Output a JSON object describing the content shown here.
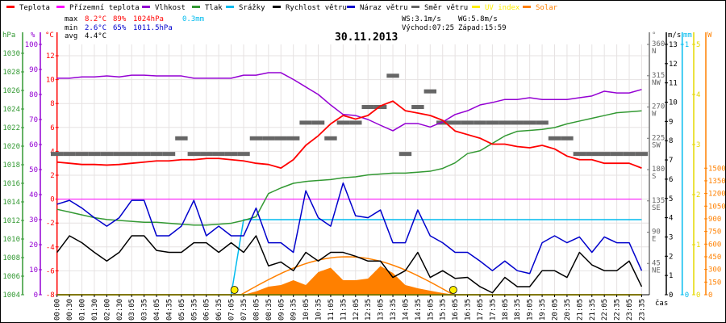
{
  "legend": [
    {
      "label": "Teplota",
      "color": "#ff0000"
    },
    {
      "label": "Přízemní teplota",
      "color": "#ff00ff"
    },
    {
      "label": "Vlhkost",
      "color": "#9400d3"
    },
    {
      "label": "Tlak",
      "color": "#339933"
    },
    {
      "label": "Srážky",
      "color": "#00bbee"
    },
    {
      "label": "Rychlost větru",
      "color": "#000000"
    },
    {
      "label": "Náraz větru",
      "color": "#0000cc"
    },
    {
      "label": "Směr větru",
      "color": "#666666"
    },
    {
      "label": "UV index",
      "color": "#ffee00"
    },
    {
      "label": "Solar",
      "color": "#ff8000"
    }
  ],
  "stats": {
    "max_label": "max",
    "min_label": "min",
    "avg_label": "avg",
    "max_temp": "8.2°C",
    "max_hum": "89%",
    "max_press": "1024hPa",
    "max_rain": "0.3mm",
    "min_temp": "2.6°C",
    "min_hum": "65%",
    "min_press": "1011.5hPa",
    "avg_temp": "4.4°C",
    "ws": "WS:3.1m/s",
    "wg": "WG:5.8m/s",
    "sunrise": "Východ:07:25",
    "sunset": "Západ:15:59"
  },
  "chart_data": {
    "type": "line",
    "title": "30.11.2013",
    "xlabel": "čas",
    "x": [
      "00:00",
      "00:30",
      "01:00",
      "01:30",
      "02:00",
      "02:30",
      "03:05",
      "03:35",
      "04:05",
      "04:35",
      "05:05",
      "05:35",
      "06:05",
      "06:35",
      "07:05",
      "07:35",
      "08:05",
      "08:35",
      "09:05",
      "09:35",
      "10:05",
      "10:35",
      "11:05",
      "11:35",
      "12:05",
      "12:35",
      "13:05",
      "13:35",
      "14:05",
      "14:35",
      "15:05",
      "15:35",
      "16:05",
      "16:35",
      "17:05",
      "17:35",
      "18:05",
      "18:35",
      "19:05",
      "19:35",
      "20:05",
      "20:35",
      "21:05",
      "21:35",
      "22:05",
      "22:35",
      "23:05",
      "23:35"
    ],
    "axes": {
      "pressure": {
        "unit": "hPa",
        "range": [
          1004,
          1030
        ],
        "ticks": [
          1004,
          1006,
          1008,
          1010,
          1012,
          1014,
          1016,
          1018,
          1020,
          1022,
          1024,
          1026,
          1028,
          1030
        ]
      },
      "humidity": {
        "unit": "%",
        "range": [
          0,
          100
        ],
        "ticks": [
          0,
          10,
          20,
          30,
          40,
          50,
          60,
          70,
          80,
          90,
          100
        ]
      },
      "temperature": {
        "unit": "°C",
        "range": [
          -8,
          13
        ],
        "ticks": [
          -8,
          -6,
          -4,
          -2,
          0,
          2,
          4,
          6,
          8,
          10,
          12
        ]
      },
      "direction": {
        "unit": "°",
        "range": [
          0,
          360
        ],
        "ticks": [
          45,
          90,
          135,
          180,
          225,
          270,
          315,
          360
        ],
        "names": [
          "NE",
          "E",
          "SE",
          "S",
          "SW",
          "W",
          "NW",
          "N"
        ]
      },
      "wind": {
        "unit": "m/s",
        "range": [
          0,
          13
        ],
        "ticks": [
          0,
          1,
          2,
          3,
          4,
          5,
          6,
          7,
          8,
          9,
          10,
          11,
          12,
          13
        ]
      },
      "rain": {
        "unit": "mm",
        "range": [
          0,
          1
        ],
        "ticks": [
          0,
          1
        ]
      },
      "uv": {
        "unit": "",
        "range": [
          0,
          5
        ],
        "ticks": [
          0,
          1,
          2,
          3,
          4,
          5
        ]
      },
      "solar": {
        "unit": "W",
        "range": [
          0,
          2970
        ],
        "ticks": [
          0,
          150,
          300,
          450,
          600,
          750,
          900,
          1050,
          1200,
          1350,
          1500
        ]
      }
    },
    "series": [
      {
        "name": "Teplota",
        "axis": "temperature",
        "color": "#ff0000",
        "values": [
          3.1,
          3.0,
          2.9,
          2.9,
          2.85,
          2.9,
          3.0,
          3.1,
          3.2,
          3.2,
          3.3,
          3.3,
          3.4,
          3.4,
          3.3,
          3.2,
          3.0,
          2.9,
          2.6,
          3.3,
          4.5,
          5.3,
          6.3,
          7.0,
          6.7,
          7.0,
          7.8,
          8.2,
          7.4,
          7.2,
          7.0,
          6.6,
          5.7,
          5.4,
          5.1,
          4.6,
          4.6,
          4.4,
          4.3,
          4.5,
          4.2,
          3.6,
          3.3,
          3.3,
          3.0,
          3.0,
          3.0,
          2.6
        ]
      },
      {
        "name": "Přízemní teplota",
        "axis": "temperature",
        "color": "#ff00ff",
        "values": [
          0,
          0,
          0,
          0,
          0,
          0,
          0,
          0,
          0,
          0,
          0,
          0,
          0,
          0,
          0,
          0,
          0,
          0,
          0,
          0,
          0,
          0,
          0,
          0,
          0,
          0,
          0,
          0,
          0,
          0,
          0,
          0,
          0,
          0,
          0,
          0,
          0,
          0,
          0,
          0,
          0,
          0,
          0,
          0,
          0,
          0,
          0,
          0
        ]
      },
      {
        "name": "Vlhkost",
        "axis": "humidity",
        "color": "#9400d3",
        "values": [
          86.5,
          86.5,
          87,
          87,
          87.4,
          87,
          87.7,
          87.7,
          87.4,
          87.4,
          87.4,
          86.5,
          86.5,
          86.5,
          86.5,
          87.7,
          87.7,
          88.7,
          88.7,
          86,
          83,
          80,
          75.8,
          72,
          71.6,
          70,
          67.7,
          65.5,
          68.4,
          68.4,
          67,
          69,
          72,
          73.5,
          75.8,
          76.8,
          78,
          78,
          78.7,
          78,
          78,
          78,
          78.7,
          79.4,
          81.3,
          80.6,
          80.6,
          82
        ]
      },
      {
        "name": "Tlak",
        "axis": "pressure",
        "color": "#339933",
        "values": [
          1013.2,
          1012.9,
          1012.6,
          1012.3,
          1012.1,
          1012.0,
          1011.9,
          1011.8,
          1011.8,
          1011.7,
          1011.6,
          1011.5,
          1011.5,
          1011.6,
          1011.7,
          1012.0,
          1012.4,
          1014.9,
          1015.5,
          1016.0,
          1016.2,
          1016.3,
          1016.4,
          1016.6,
          1016.7,
          1016.9,
          1017.0,
          1017.1,
          1017.1,
          1017.2,
          1017.3,
          1017.6,
          1018.2,
          1019.2,
          1019.5,
          1020.3,
          1021.1,
          1021.6,
          1021.7,
          1021.8,
          1022.0,
          1022.4,
          1022.7,
          1023.0,
          1023.3,
          1023.6,
          1023.7,
          1023.8
        ]
      },
      {
        "name": "Srážky",
        "axis": "rain",
        "color": "#00bbee",
        "values": [
          0,
          0,
          0,
          0,
          0,
          0,
          0,
          0,
          0,
          0,
          0,
          0,
          0,
          0,
          0,
          0.3,
          0.3,
          0.3,
          0.3,
          0.3,
          0.3,
          0.3,
          0.3,
          0.3,
          0.3,
          0.3,
          0.3,
          0.3,
          0.3,
          0.3,
          0.3,
          0.3,
          0.3,
          0.3,
          0.3,
          0.3,
          0.3,
          0.3,
          0.3,
          0.3,
          0.3,
          0.3,
          0.3,
          0.3,
          0.3,
          0.3,
          0.3,
          0.3
        ]
      },
      {
        "name": "Rychlost větru",
        "axis": "wind",
        "color": "#000000",
        "values": [
          2.2,
          3.06,
          2.7,
          2.2,
          1.75,
          2.2,
          3.06,
          3.06,
          2.3,
          2.2,
          2.2,
          2.7,
          2.7,
          2.2,
          2.7,
          2.2,
          3.06,
          1.5,
          1.7,
          1.25,
          2.2,
          1.75,
          2.2,
          2.2,
          2.0,
          1.75,
          1.75,
          0.9,
          1.25,
          2.2,
          0.9,
          1.25,
          0.85,
          0.9,
          0.42,
          0.1,
          0.9,
          0.42,
          0.42,
          1.25,
          1.25,
          0.9,
          2.2,
          1.55,
          1.25,
          1.25,
          1.75,
          0.42
        ]
      },
      {
        "name": "Náraz větru",
        "axis": "wind",
        "color": "#0000cc",
        "values": [
          4.7,
          4.9,
          4.5,
          4.0,
          3.56,
          4.0,
          4.9,
          4.9,
          3.06,
          3.06,
          3.56,
          4.9,
          3.06,
          3.56,
          3.06,
          3.06,
          4.5,
          2.7,
          2.7,
          2.2,
          5.4,
          4.0,
          3.56,
          5.8,
          4.1,
          4.0,
          4.4,
          2.7,
          2.7,
          4.4,
          3.06,
          2.7,
          2.2,
          2.2,
          1.75,
          1.25,
          1.75,
          1.25,
          1.1,
          2.7,
          3.06,
          2.7,
          3.0,
          2.2,
          3.0,
          2.7,
          2.7,
          1.25
        ]
      },
      {
        "name": "Směr větru",
        "axis": "direction",
        "color": "#666666",
        "values": [
          202.5,
          202.5,
          202.5,
          202.5,
          202.5,
          202.5,
          202.5,
          202.5,
          202.5,
          202.5,
          225,
          202.5,
          202.5,
          202.5,
          202.5,
          202.5,
          225,
          225,
          225,
          225,
          247.5,
          247.5,
          225,
          247.5,
          247.5,
          270,
          270,
          315,
          202.5,
          270,
          292.5,
          247.5,
          247.5,
          247.5,
          247.5,
          247.5,
          247.5,
          247.5,
          247.5,
          247.5,
          225,
          225,
          202.5,
          202.5,
          202.5,
          202.5,
          202.5,
          202.5
        ]
      },
      {
        "name": "UV index",
        "axis": "uv",
        "color": "#ffee00",
        "values": [
          0,
          0,
          0,
          0,
          0,
          0,
          0,
          0,
          0,
          0,
          0,
          0,
          0,
          0,
          0,
          0,
          0,
          0,
          0,
          0,
          0,
          0,
          0,
          0,
          0,
          0,
          0,
          0,
          0,
          0,
          0,
          0,
          0,
          0,
          0,
          0,
          0,
          0,
          0,
          0,
          0,
          0,
          0,
          0,
          0,
          0,
          0,
          0
        ]
      },
      {
        "name": "Solar",
        "axis": "solar",
        "color": "#ff8000",
        "values": [
          0,
          0,
          0,
          0,
          0,
          0,
          0,
          0,
          0,
          0,
          0,
          0,
          0,
          0,
          0,
          0,
          40,
          96,
          115,
          172,
          115,
          268,
          320,
          172,
          172,
          191,
          340,
          258,
          115,
          77,
          48,
          20,
          0,
          0,
          0,
          0,
          0,
          0,
          0,
          0,
          0,
          0,
          0,
          0,
          0,
          0,
          0,
          0
        ]
      }
    ],
    "solar_max_curve": {
      "name": "Solar max",
      "peak": 450,
      "sunrise": "07:25",
      "sunset": "15:59"
    }
  }
}
